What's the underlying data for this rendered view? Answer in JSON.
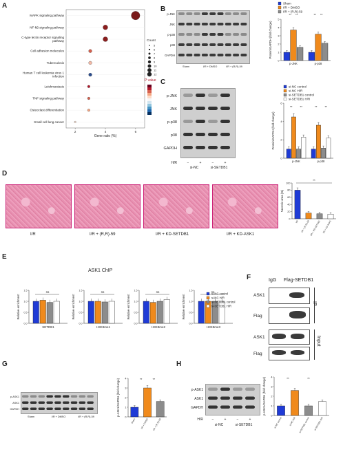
{
  "panels": {
    "A": "A",
    "B": "B",
    "C": "C",
    "D": "D",
    "E": "E",
    "F": "F",
    "G": "G",
    "H": "H"
  },
  "chart_data": [
    {
      "panel": "A",
      "type": "scatter",
      "xlabel": "Gene ratio (%)",
      "xticks": [
        "2",
        "4",
        "6"
      ],
      "xlim": [
        1.4,
        6.6
      ],
      "categories": [
        "MAPK signaling pathway",
        "NF-kB signaling pathway",
        "C-type lectin receptor signaling pathway",
        "Cell adhesion molecules",
        "Tuberculosis",
        "Human T cell leukemia virus 1 infection",
        "Leishmaniasis",
        "TNF signaling pathway",
        "Osteoclast differentiation",
        "Small cell lung cancer"
      ],
      "x": [
        6.0,
        4.0,
        4.0,
        3.0,
        3.0,
        3.0,
        2.9,
        2.9,
        2.9,
        2.0
      ],
      "count": [
        12,
        7,
        7,
        5,
        5,
        5,
        4,
        4,
        4,
        3
      ],
      "color": [
        "#7a1a1a",
        "#8b1e1e",
        "#8b1e1e",
        "#d6604d",
        "#f4b9a5",
        "#2a4d8f",
        "#b2182b",
        "#d6604d",
        "#f4a582",
        "#fbe3d6"
      ],
      "legend_count_title": "Count",
      "legend_count_values": [
        "5",
        "6",
        "7",
        "8",
        "9",
        "10",
        "11",
        "12"
      ],
      "legend_p_title": "P value"
    },
    {
      "panel": "B",
      "type": "bar",
      "ylabel": "Protein/GAPDH (fold change)",
      "categories": [
        "p-JNK",
        "p-p38"
      ],
      "series": [
        {
          "name": "Sham",
          "values": [
            1.0,
            1.0
          ],
          "color": "#1f3bd6"
        },
        {
          "name": "I/R + DMSO",
          "values": [
            3.7,
            3.2
          ],
          "color": "#f08a1c"
        },
        {
          "name": "I/R + (R,R)-59",
          "values": [
            1.6,
            2.1
          ],
          "color": "#8c8c8c"
        }
      ],
      "ylim": [
        0,
        5
      ],
      "yticks": [
        "0",
        "1",
        "2",
        "3",
        "4",
        "5"
      ],
      "sig": [
        "**",
        "**",
        "**",
        "**"
      ],
      "blot_rows": [
        "p-JNK",
        "JNK",
        "p-p38",
        "p38",
        "GAPDH"
      ],
      "groups": [
        "Sham",
        "I/R + DMSO",
        "I/R + (R,R)-59"
      ]
    },
    {
      "panel": "C",
      "type": "bar",
      "ylabel": "Protein/GAPDH (fold change)",
      "categories": [
        "p-JNK",
        "p-p38"
      ],
      "series": [
        {
          "name": "si-NC control",
          "values": [
            1.0,
            1.0
          ],
          "color": "#1f3bd6"
        },
        {
          "name": "si-NC H/R",
          "values": [
            4.5,
            3.6
          ],
          "color": "#f08a1c"
        },
        {
          "name": "si-SETDB1 control",
          "values": [
            1.0,
            1.1
          ],
          "color": "#8c8c8c"
        },
        {
          "name": "si-SETDB1 H/R",
          "values": [
            2.3,
            2.2
          ],
          "color": "#ffffff"
        }
      ],
      "ylim": [
        0,
        6
      ],
      "yticks": [
        "0",
        "2",
        "4",
        "6"
      ],
      "sig": [
        "**",
        "**",
        "**",
        "**"
      ],
      "blot_rows": [
        "p-JNK",
        "JNK",
        "p-p38",
        "p38",
        "GAPDH"
      ],
      "hr_label": "H/R",
      "hr_marks": [
        "−",
        "+",
        "−",
        "+"
      ],
      "groups": [
        "si-NC",
        "si-SETDB1"
      ]
    },
    {
      "panel": "D",
      "type": "bar",
      "ylabel": "Necrotic area (%)",
      "categories": [
        "I/R",
        "I/R + (R,R)-59",
        "I/R + KD-SETDB1",
        "I/R + KD-ASK1"
      ],
      "values": [
        80,
        16,
        14,
        13
      ],
      "colors": [
        "#1f3bd6",
        "#f08a1c",
        "#8c8c8c",
        "#ffffff"
      ],
      "ylim": [
        0,
        100
      ],
      "yticks": [
        "0",
        "20",
        "40",
        "60",
        "80",
        "100"
      ],
      "sig": [
        "**"
      ],
      "image_labels": [
        "I/R",
        "I/R + (R,R)-59",
        "I/R + KD-SETDB1",
        "I/R + KD-ASK1"
      ]
    },
    {
      "panel": "E",
      "type": "bar",
      "title": "ASK1 ChIP",
      "ylabel": "Relative enrichment",
      "categories": [
        "SETDB1",
        "H3K9me1",
        "H3K9me2",
        "H3K9me3"
      ],
      "series": [
        {
          "name": "si-NC control",
          "values": [
            1.0,
            1.0,
            1.0,
            1.0
          ],
          "color": "#1f3bd6"
        },
        {
          "name": "si-NC H/R",
          "values": [
            1.05,
            1.0,
            0.95,
            1.0
          ],
          "color": "#f08a1c"
        },
        {
          "name": "si-SETDB1 control",
          "values": [
            0.95,
            0.97,
            1.0,
            1.0
          ],
          "color": "#8c8c8c"
        },
        {
          "name": "si-SETDB1 H/R",
          "values": [
            1.0,
            1.0,
            1.08,
            0.97
          ],
          "color": "#ffffff"
        }
      ],
      "ylim": [
        0,
        1.5
      ],
      "yticks": [
        "0.0",
        "0.5",
        "1.0",
        "1.5"
      ],
      "sig": [
        "ns",
        "ns",
        "ns",
        "ns"
      ]
    },
    {
      "panel": "G",
      "type": "bar",
      "ylabel": "p-ASK1/GAPDH (fold change)",
      "categories": [
        "Sham",
        "I/R + DMSO",
        "I/R + (R,R)-59"
      ],
      "values": [
        1.0,
        3.0,
        1.6
      ],
      "colors": [
        "#1f3bd6",
        "#f08a1c",
        "#8c8c8c"
      ],
      "ylim": [
        0,
        4
      ],
      "yticks": [
        "0",
        "1",
        "2",
        "3",
        "4"
      ],
      "sig": [
        "**",
        "**"
      ],
      "blot_rows": [
        "p-ASK1",
        "ASK1",
        "GAPDH"
      ],
      "groups": [
        "Sham",
        "I/R + DMSO",
        "I/R + (R,R)-59"
      ]
    },
    {
      "panel": "H",
      "type": "bar",
      "ylabel": "p-ASK1/GAPDH (fold change)",
      "categories": [
        "si-NC control",
        "si-NC H/R",
        "si-SETDB1 control",
        "si-SETDB1 H/R"
      ],
      "values": [
        1.0,
        2.6,
        1.0,
        1.45
      ],
      "colors": [
        "#1f3bd6",
        "#f08a1c",
        "#8c8c8c",
        "#ffffff"
      ],
      "ylim": [
        0,
        4
      ],
      "yticks": [
        "0",
        "1",
        "2",
        "3",
        "4"
      ],
      "sig": [
        "**",
        "**"
      ],
      "blot_rows": [
        "p-ASK1",
        "ASK1",
        "GAPDH"
      ],
      "hr_label": "H/R",
      "hr_marks": [
        "−",
        "+",
        "−",
        "+"
      ],
      "groups": [
        "si-NC",
        "si-SETDB1"
      ]
    }
  ],
  "F": {
    "col_labels": [
      "IgG",
      "Flag-SETDB1"
    ],
    "row_labels": [
      "ASK1",
      "Flag",
      "ASK1",
      "Flag"
    ],
    "ip_label": "IP",
    "input_label": "Input"
  }
}
